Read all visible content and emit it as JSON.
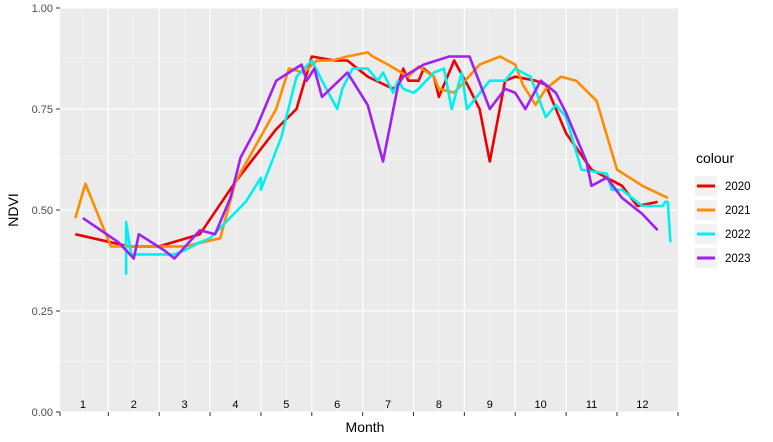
{
  "chart_data": {
    "type": "line",
    "xlabel": "Month",
    "ylabel": "NDVI",
    "ylim": [
      0,
      1
    ],
    "xlim": [
      0.55,
      12.7
    ],
    "yticks": [
      0,
      0.25,
      0.5,
      0.75,
      1.0
    ],
    "ytick_labels": [
      "0.00",
      "0.25",
      "0.50",
      "0.75",
      "1.00"
    ],
    "month_labels": [
      "1",
      "2",
      "3",
      "4",
      "5",
      "6",
      "7",
      "8",
      "9",
      "10",
      "11",
      "12"
    ],
    "legend": {
      "title": "colour",
      "position": "right"
    },
    "grid": true,
    "series": [
      {
        "name": "2020",
        "color": "#ee0000",
        "points": [
          [
            0.85,
            0.44
          ],
          [
            1.9,
            0.41
          ],
          [
            2.5,
            0.41
          ],
          [
            3.3,
            0.44
          ],
          [
            4.0,
            0.57
          ],
          [
            4.8,
            0.7
          ],
          [
            5.2,
            0.75
          ],
          [
            5.5,
            0.88
          ],
          [
            5.95,
            0.87
          ],
          [
            6.2,
            0.87
          ],
          [
            6.6,
            0.83
          ],
          [
            7.1,
            0.8
          ],
          [
            7.2,
            0.81
          ],
          [
            7.3,
            0.85
          ],
          [
            7.4,
            0.82
          ],
          [
            7.6,
            0.82
          ],
          [
            7.7,
            0.85
          ],
          [
            7.9,
            0.83
          ],
          [
            8.0,
            0.78
          ],
          [
            8.3,
            0.87
          ],
          [
            8.6,
            0.8
          ],
          [
            8.8,
            0.75
          ],
          [
            9.0,
            0.62
          ],
          [
            9.3,
            0.82
          ],
          [
            9.5,
            0.83
          ],
          [
            9.9,
            0.82
          ],
          [
            10.1,
            0.81
          ],
          [
            10.2,
            0.78
          ],
          [
            10.5,
            0.69
          ],
          [
            11.0,
            0.6
          ],
          [
            11.6,
            0.56
          ],
          [
            11.9,
            0.51
          ],
          [
            12.3,
            0.52
          ]
        ]
      },
      {
        "name": "2021",
        "color": "#ff8c00",
        "points": [
          [
            0.85,
            0.48
          ],
          [
            1.05,
            0.565
          ],
          [
            1.55,
            0.41
          ],
          [
            2.4,
            0.41
          ],
          [
            3.0,
            0.41
          ],
          [
            3.7,
            0.43
          ],
          [
            4.0,
            0.57
          ],
          [
            4.8,
            0.75
          ],
          [
            5.05,
            0.85
          ],
          [
            5.35,
            0.84
          ],
          [
            5.6,
            0.87
          ],
          [
            5.9,
            0.87
          ],
          [
            6.2,
            0.88
          ],
          [
            6.6,
            0.89
          ],
          [
            6.7,
            0.88
          ],
          [
            7.0,
            0.86
          ],
          [
            7.4,
            0.83
          ],
          [
            7.6,
            0.855
          ],
          [
            7.9,
            0.83
          ],
          [
            8.0,
            0.8
          ],
          [
            8.3,
            0.79
          ],
          [
            8.8,
            0.86
          ],
          [
            9.2,
            0.88
          ],
          [
            9.5,
            0.86
          ],
          [
            9.65,
            0.81
          ],
          [
            9.9,
            0.76
          ],
          [
            10.1,
            0.8
          ],
          [
            10.4,
            0.83
          ],
          [
            10.7,
            0.82
          ],
          [
            11.1,
            0.77
          ],
          [
            11.5,
            0.6
          ],
          [
            12.0,
            0.56
          ],
          [
            12.5,
            0.53
          ]
        ]
      },
      {
        "name": "2022",
        "color": "#00f0f0",
        "points": [
          [
            1.85,
            0.34
          ],
          [
            1.85,
            0.47
          ],
          [
            1.95,
            0.39
          ],
          [
            2.8,
            0.39
          ],
          [
            3.0,
            0.4
          ],
          [
            3.3,
            0.42
          ],
          [
            3.5,
            0.43
          ],
          [
            4.2,
            0.52
          ],
          [
            4.5,
            0.58
          ],
          [
            4.5,
            0.55
          ],
          [
            4.9,
            0.68
          ],
          [
            5.2,
            0.83
          ],
          [
            5.5,
            0.87
          ],
          [
            5.7,
            0.82
          ],
          [
            6.0,
            0.75
          ],
          [
            6.1,
            0.8
          ],
          [
            6.3,
            0.85
          ],
          [
            6.6,
            0.85
          ],
          [
            6.8,
            0.82
          ],
          [
            6.9,
            0.84
          ],
          [
            7.1,
            0.79
          ],
          [
            7.2,
            0.82
          ],
          [
            7.3,
            0.8
          ],
          [
            7.5,
            0.79
          ],
          [
            7.6,
            0.8
          ],
          [
            7.9,
            0.84
          ],
          [
            8.1,
            0.85
          ],
          [
            8.25,
            0.75
          ],
          [
            8.45,
            0.84
          ],
          [
            8.55,
            0.75
          ],
          [
            9.0,
            0.82
          ],
          [
            9.3,
            0.82
          ],
          [
            9.5,
            0.85
          ],
          [
            9.8,
            0.83
          ],
          [
            10.1,
            0.73
          ],
          [
            10.3,
            0.76
          ],
          [
            10.5,
            0.73
          ],
          [
            10.8,
            0.6
          ],
          [
            11.3,
            0.59
          ],
          [
            11.4,
            0.55
          ],
          [
            11.6,
            0.55
          ],
          [
            12.0,
            0.51
          ],
          [
            12.4,
            0.51
          ],
          [
            12.45,
            0.52
          ],
          [
            12.5,
            0.52
          ],
          [
            12.55,
            0.42
          ]
        ]
      },
      {
        "name": "2023",
        "color": "#a020f0",
        "points": [
          [
            1.0,
            0.48
          ],
          [
            1.7,
            0.42
          ],
          [
            2.0,
            0.38
          ],
          [
            2.1,
            0.44
          ],
          [
            2.6,
            0.4
          ],
          [
            2.8,
            0.38
          ],
          [
            3.3,
            0.45
          ],
          [
            3.6,
            0.44
          ],
          [
            3.9,
            0.53
          ],
          [
            4.1,
            0.63
          ],
          [
            4.4,
            0.7
          ],
          [
            4.8,
            0.82
          ],
          [
            5.3,
            0.86
          ],
          [
            5.4,
            0.82
          ],
          [
            5.55,
            0.85
          ],
          [
            5.7,
            0.78
          ],
          [
            6.2,
            0.84
          ],
          [
            6.6,
            0.76
          ],
          [
            6.9,
            0.62
          ],
          [
            7.2,
            0.81
          ],
          [
            7.3,
            0.83
          ],
          [
            7.7,
            0.86
          ],
          [
            8.2,
            0.88
          ],
          [
            8.6,
            0.88
          ],
          [
            9.0,
            0.75
          ],
          [
            9.3,
            0.8
          ],
          [
            9.5,
            0.79
          ],
          [
            9.7,
            0.75
          ],
          [
            10.0,
            0.82
          ],
          [
            10.3,
            0.79
          ],
          [
            10.5,
            0.74
          ],
          [
            10.9,
            0.62
          ],
          [
            11.0,
            0.56
          ],
          [
            11.3,
            0.58
          ],
          [
            11.6,
            0.53
          ],
          [
            12.0,
            0.49
          ],
          [
            12.15,
            0.47
          ],
          [
            12.3,
            0.45
          ]
        ]
      }
    ]
  }
}
